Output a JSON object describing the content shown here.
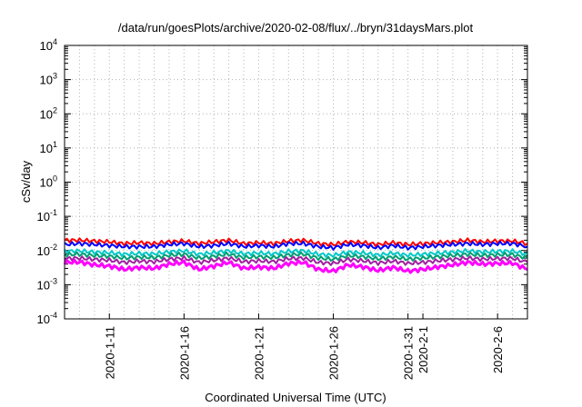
{
  "chart_data": {
    "type": "line",
    "title": "/data/run/goesPlots/archive/2020-02-08/flux/../bryn/31daysMars.plot",
    "xlabel": "Coordinated Universal Time (UTC)",
    "ylabel": "cSv/day",
    "y_scale": "log",
    "ylim": [
      0.0001,
      10000
    ],
    "y_ticks": [
      {
        "value": 0.0001,
        "base": "10",
        "exp": "-4"
      },
      {
        "value": 0.001,
        "base": "10",
        "exp": "-3"
      },
      {
        "value": 0.01,
        "base": "10",
        "exp": "-2"
      },
      {
        "value": 0.1,
        "base": "10",
        "exp": "-1"
      },
      {
        "value": 1,
        "base": "10",
        "exp": "0"
      },
      {
        "value": 10,
        "base": "10",
        "exp": "1"
      },
      {
        "value": 100,
        "base": "10",
        "exp": "2"
      },
      {
        "value": 1000,
        "base": "10",
        "exp": "3"
      },
      {
        "value": 10000,
        "base": "10",
        "exp": "4"
      }
    ],
    "xlim": [
      "2020-01-08",
      "2020-02-08"
    ],
    "x_ticks": [
      "2020-1-11",
      "2020-1-16",
      "2020-1-21",
      "2020-1-26",
      "2020-1-31",
      "2020-2-1",
      "2020-2-6"
    ],
    "x_tick_dates": [
      "2020-01-11",
      "2020-01-16",
      "2020-01-21",
      "2020-01-26",
      "2020-01-31",
      "2020-02-01",
      "2020-02-06"
    ],
    "grid": true,
    "legend": "none",
    "series": [
      {
        "color": "#ff0000",
        "x": [
          "2020-01-08",
          "2020-01-09",
          "2020-01-10",
          "2020-01-11",
          "2020-01-12",
          "2020-01-13",
          "2020-01-14",
          "2020-01-15",
          "2020-01-16",
          "2020-01-17",
          "2020-01-18",
          "2020-01-19",
          "2020-01-20",
          "2020-01-21",
          "2020-01-22",
          "2020-01-23",
          "2020-01-24",
          "2020-01-25",
          "2020-01-26",
          "2020-01-27",
          "2020-01-28",
          "2020-01-29",
          "2020-01-30",
          "2020-01-31",
          "2020-02-01",
          "2020-02-02",
          "2020-02-03",
          "2020-02-04",
          "2020-02-05",
          "2020-02-06",
          "2020-02-07",
          "2020-02-08"
        ],
        "values": [
          0.02,
          0.02,
          0.019,
          0.018,
          0.016,
          0.017,
          0.016,
          0.018,
          0.019,
          0.016,
          0.018,
          0.02,
          0.016,
          0.017,
          0.016,
          0.019,
          0.02,
          0.016,
          0.015,
          0.018,
          0.017,
          0.015,
          0.017,
          0.015,
          0.016,
          0.017,
          0.018,
          0.02,
          0.018,
          0.019,
          0.019,
          0.016
        ]
      },
      {
        "color": "#0000ff",
        "x": [
          "2020-01-08",
          "2020-01-09",
          "2020-01-10",
          "2020-01-11",
          "2020-01-12",
          "2020-01-13",
          "2020-01-14",
          "2020-01-15",
          "2020-01-16",
          "2020-01-17",
          "2020-01-18",
          "2020-01-19",
          "2020-01-20",
          "2020-01-21",
          "2020-01-22",
          "2020-01-23",
          "2020-01-24",
          "2020-01-25",
          "2020-01-26",
          "2020-01-27",
          "2020-01-28",
          "2020-01-29",
          "2020-01-30",
          "2020-01-31",
          "2020-02-01",
          "2020-02-02",
          "2020-02-03",
          "2020-02-04",
          "2020-02-05",
          "2020-02-06",
          "2020-02-07",
          "2020-02-08"
        ],
        "values": [
          0.015,
          0.016,
          0.015,
          0.014,
          0.013,
          0.013,
          0.013,
          0.015,
          0.016,
          0.013,
          0.014,
          0.016,
          0.013,
          0.014,
          0.013,
          0.016,
          0.016,
          0.013,
          0.012,
          0.015,
          0.014,
          0.012,
          0.014,
          0.012,
          0.013,
          0.014,
          0.015,
          0.016,
          0.015,
          0.016,
          0.016,
          0.013
        ]
      },
      {
        "color": "#00c8c8",
        "x": [
          "2020-01-08",
          "2020-01-09",
          "2020-01-10",
          "2020-01-11",
          "2020-01-12",
          "2020-01-13",
          "2020-01-14",
          "2020-01-15",
          "2020-01-16",
          "2020-01-17",
          "2020-01-18",
          "2020-01-19",
          "2020-01-20",
          "2020-01-21",
          "2020-01-22",
          "2020-01-23",
          "2020-01-24",
          "2020-01-25",
          "2020-01-26",
          "2020-01-27",
          "2020-01-28",
          "2020-01-29",
          "2020-01-30",
          "2020-01-31",
          "2020-02-01",
          "2020-02-02",
          "2020-02-03",
          "2020-02-04",
          "2020-02-05",
          "2020-02-06",
          "2020-02-07",
          "2020-02-08"
        ],
        "values": [
          0.0095,
          0.0098,
          0.009,
          0.0087,
          0.0078,
          0.0082,
          0.008,
          0.0092,
          0.0098,
          0.0078,
          0.0087,
          0.0098,
          0.008,
          0.0085,
          0.008,
          0.0095,
          0.0098,
          0.0078,
          0.0072,
          0.009,
          0.0085,
          0.0074,
          0.0084,
          0.0073,
          0.0078,
          0.0084,
          0.009,
          0.0098,
          0.0091,
          0.0095,
          0.0096,
          0.0078
        ]
      },
      {
        "color": "#009e73",
        "x": [
          "2020-01-08",
          "2020-01-09",
          "2020-01-10",
          "2020-01-11",
          "2020-01-12",
          "2020-01-13",
          "2020-01-14",
          "2020-01-15",
          "2020-01-16",
          "2020-01-17",
          "2020-01-18",
          "2020-01-19",
          "2020-01-20",
          "2020-01-21",
          "2020-01-22",
          "2020-01-23",
          "2020-01-24",
          "2020-01-25",
          "2020-01-26",
          "2020-01-27",
          "2020-01-28",
          "2020-01-29",
          "2020-01-30",
          "2020-01-31",
          "2020-02-01",
          "2020-02-02",
          "2020-02-03",
          "2020-02-04",
          "2020-02-05",
          "2020-02-06",
          "2020-02-07",
          "2020-02-08"
        ],
        "values": [
          0.0075,
          0.0078,
          0.0071,
          0.0068,
          0.006,
          0.0064,
          0.0062,
          0.0072,
          0.0078,
          0.006,
          0.0068,
          0.0078,
          0.0062,
          0.0066,
          0.0062,
          0.0075,
          0.0078,
          0.006,
          0.0055,
          0.0071,
          0.0066,
          0.0057,
          0.0065,
          0.0056,
          0.006,
          0.0066,
          0.0071,
          0.0078,
          0.0072,
          0.0075,
          0.0076,
          0.006
        ]
      },
      {
        "color": "#a020a0",
        "x": [
          "2020-01-08",
          "2020-01-09",
          "2020-01-10",
          "2020-01-11",
          "2020-01-12",
          "2020-01-13",
          "2020-01-14",
          "2020-01-15",
          "2020-01-16",
          "2020-01-17",
          "2020-01-18",
          "2020-01-19",
          "2020-01-20",
          "2020-01-21",
          "2020-01-22",
          "2020-01-23",
          "2020-01-24",
          "2020-01-25",
          "2020-01-26",
          "2020-01-27",
          "2020-01-28",
          "2020-01-29",
          "2020-01-30",
          "2020-01-31",
          "2020-02-01",
          "2020-02-02",
          "2020-02-03",
          "2020-02-04",
          "2020-02-05",
          "2020-02-06",
          "2020-02-07",
          "2020-02-08"
        ],
        "values": [
          0.0058,
          0.006,
          0.0055,
          0.0052,
          0.0045,
          0.0049,
          0.0047,
          0.0056,
          0.006,
          0.0045,
          0.0052,
          0.006,
          0.0047,
          0.005,
          0.0047,
          0.0058,
          0.006,
          0.0045,
          0.0042,
          0.0055,
          0.005,
          0.0043,
          0.0049,
          0.0042,
          0.0045,
          0.005,
          0.0055,
          0.006,
          0.0056,
          0.0058,
          0.0059,
          0.0045
        ]
      },
      {
        "color": "#ff00ff",
        "x": [
          "2020-01-08",
          "2020-01-09",
          "2020-01-10",
          "2020-01-11",
          "2020-01-12",
          "2020-01-13",
          "2020-01-14",
          "2020-01-15",
          "2020-01-16",
          "2020-01-17",
          "2020-01-18",
          "2020-01-19",
          "2020-01-20",
          "2020-01-21",
          "2020-01-22",
          "2020-01-23",
          "2020-01-24",
          "2020-01-25",
          "2020-01-26",
          "2020-01-27",
          "2020-01-28",
          "2020-01-29",
          "2020-01-30",
          "2020-01-31",
          "2020-02-01",
          "2020-02-02",
          "2020-02-03",
          "2020-02-04",
          "2020-02-05",
          "2020-02-06",
          "2020-02-07",
          "2020-02-08"
        ],
        "values": [
          0.0045,
          0.0046,
          0.0038,
          0.0035,
          0.0028,
          0.0032,
          0.003,
          0.004,
          0.0045,
          0.0028,
          0.0035,
          0.0045,
          0.003,
          0.0033,
          0.003,
          0.0042,
          0.0045,
          0.0028,
          0.0025,
          0.0038,
          0.0033,
          0.0026,
          0.0032,
          0.0025,
          0.0028,
          0.0033,
          0.0038,
          0.0045,
          0.004,
          0.0042,
          0.0043,
          0.0028
        ]
      }
    ]
  }
}
